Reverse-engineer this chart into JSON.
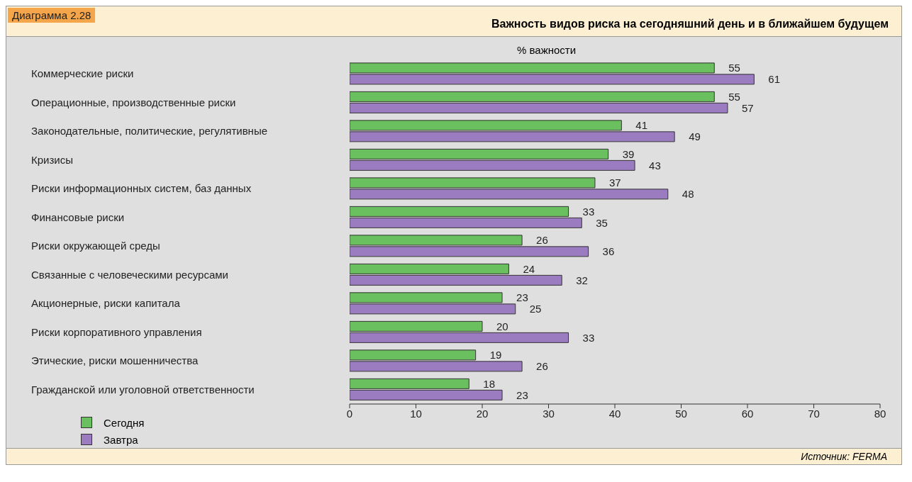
{
  "chart_data": {
    "type": "bar",
    "orientation": "horizontal",
    "title": "Важность видов риска на сегодняшний день и в ближайшем будущем",
    "xlabel": "% важности",
    "annotations": [
      "Диаграмма 2.28",
      "Источник: FERMA"
    ],
    "categories": [
      "Коммерческие риски",
      "Операционные, производственные риски",
      "Законодательные, политические, регулятивные",
      "Кризисы",
      "Риски информационных систем, баз данных",
      "Финансовые риски",
      "Риски окружающей среды",
      "Связанные с человеческими ресурсами",
      "Акционерные, риски капитала",
      "Риски корпоративного управления",
      "Этические, риски мошенничества",
      "Гражданской или уголовной ответственности"
    ],
    "series": [
      {
        "name": "Сегодня",
        "color": "#6abf5e",
        "values": [
          55,
          55,
          41,
          39,
          37,
          33,
          26,
          24,
          23,
          20,
          19,
          18
        ]
      },
      {
        "name": "Завтра",
        "color": "#9b7cc0",
        "values": [
          61,
          57,
          49,
          43,
          48,
          35,
          36,
          32,
          25,
          33,
          26,
          23
        ]
      }
    ],
    "xlim": [
      0,
      80
    ],
    "xticks": [
      0,
      10,
      20,
      30,
      40,
      50,
      60,
      70,
      80
    ],
    "data_labels": true,
    "legend": "bottom left"
  }
}
